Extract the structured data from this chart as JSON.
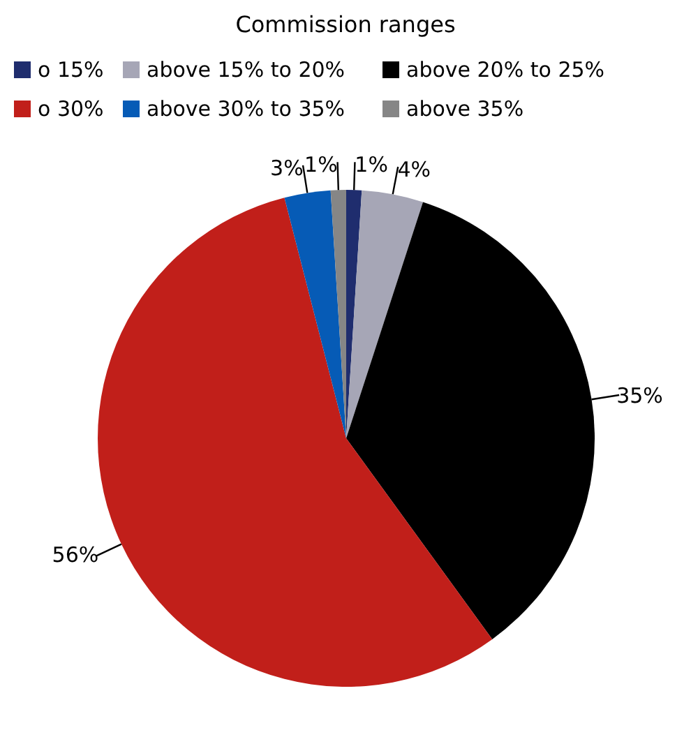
{
  "chart_data": {
    "type": "pie",
    "legend_title": "Commission ranges",
    "categories": [
      "o 15%",
      "above 15% to 20%",
      "above 20% to 25%",
      "o 30%",
      "above 30% to 35%",
      "above 35%"
    ],
    "values": [
      1,
      4,
      35,
      56,
      3,
      1
    ],
    "value_labels": [
      "1%",
      "4%",
      "35%",
      "56%",
      "3%",
      "1%"
    ],
    "colors": [
      "#1f2d6e",
      "#a6a6b6",
      "#000000",
      "#c11f1a",
      "#065bb6",
      "#868686"
    ],
    "legend": "top"
  }
}
